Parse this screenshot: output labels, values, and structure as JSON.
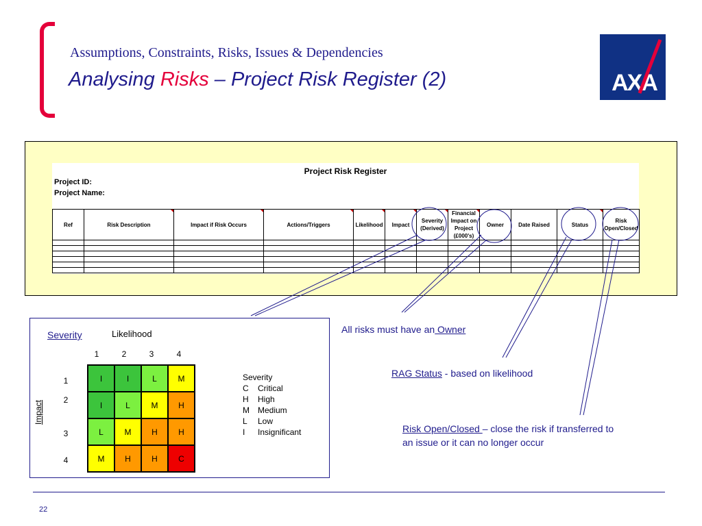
{
  "header": {
    "title": "Assumptions, Constraints, Risks, Issues & Dependencies",
    "subtitle_prefix": "Analysing ",
    "subtitle_highlight": "Risks",
    "subtitle_suffix": " – Project Risk Register (2)",
    "logo_text": "AXA"
  },
  "register": {
    "title": "Project Risk Register",
    "project_id_label": "Project ID:",
    "project_name_label": "Project Name:",
    "columns": [
      "Ref",
      "Risk Description",
      "Impact if Risk Occurs",
      "Actions/Triggers",
      "Likelihood",
      "Impact",
      "Severity (Derived)",
      "Financial Impact on Project (£000's)",
      "Owner",
      "Date Raised",
      "Status",
      "Risk Open/Closed"
    ],
    "empty_rows": 6
  },
  "severity_panel": {
    "title": "Severity",
    "likelihood_label": "Likelihood",
    "impact_label": "Impact",
    "likelihood_values": [
      "1",
      "2",
      "3",
      "4"
    ],
    "impact_values": [
      "1",
      "2",
      "3",
      "4"
    ],
    "matrix": [
      [
        "I",
        "I",
        "L",
        "M"
      ],
      [
        "I",
        "L",
        "M",
        "H"
      ],
      [
        "L",
        "M",
        "H",
        "H"
      ],
      [
        "M",
        "H",
        "H",
        "C"
      ]
    ],
    "colors": {
      "I": "#3cc43c",
      "L": "#7cf040",
      "M": "#ffff00",
      "H": "#ff9900",
      "C": "#ee0000"
    },
    "legend_title": "Severity",
    "legend": [
      {
        "code": "C",
        "label": "Critical"
      },
      {
        "code": "H",
        "label": "High"
      },
      {
        "code": "M",
        "label": "Medium"
      },
      {
        "code": "L",
        "label": "Low"
      },
      {
        "code": "I",
        "label": "Insignificant"
      }
    ]
  },
  "notes": {
    "owner_prefix": "All risks must have an",
    "owner_link": " Owner",
    "rag_link": "RAG Status",
    "rag_text": " - based on likelihood",
    "open_closed_link": "Risk Open/Closed ",
    "open_closed_text1": "– close the risk if transferred to",
    "open_closed_text2": "an issue or it can no longer occur"
  },
  "footer": {
    "page_number": "22"
  },
  "theme": {
    "navy": "#1f1b8c",
    "red": "#e4003a",
    "axa_blue": "#103184",
    "panel_yellow": "#ffffc4"
  }
}
